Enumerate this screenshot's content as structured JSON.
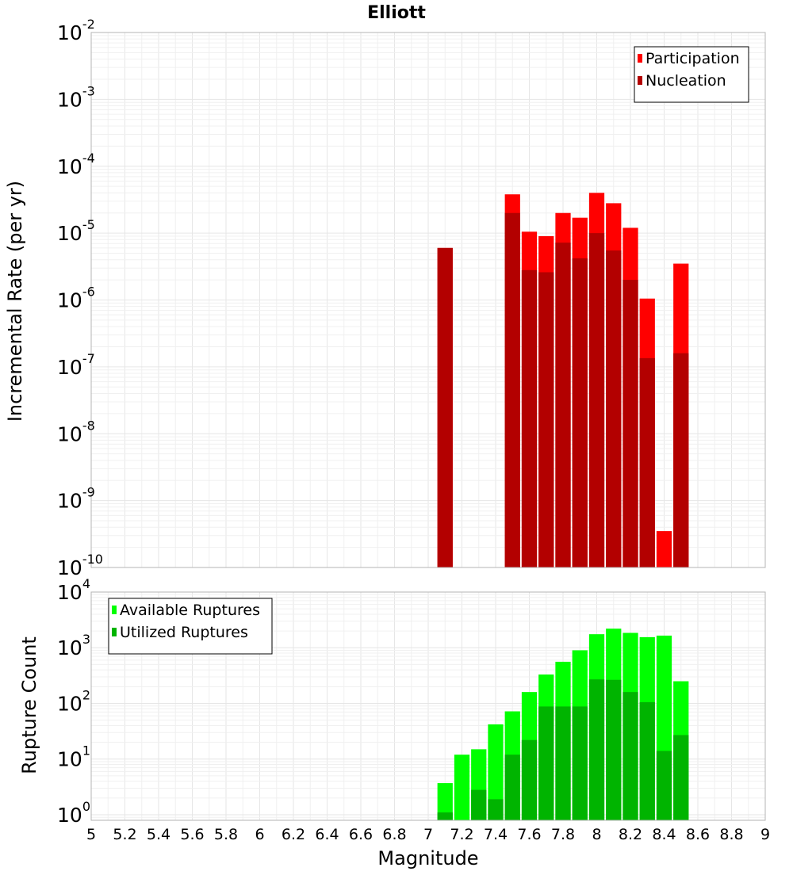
{
  "chart_data": [
    {
      "type": "bar",
      "panel": "top",
      "title": "Elliott",
      "ylabel": "Incremental Rate (per yr)",
      "xlabel": "Magnitude",
      "xlim": [
        5,
        9
      ],
      "ylim_log10": [
        -10,
        -2
      ],
      "yscale": "log",
      "bar_width": 0.1,
      "x": [
        7.1,
        7.2,
        7.3,
        7.4,
        7.5,
        7.6,
        7.7,
        7.8,
        7.9,
        8.0,
        8.1,
        8.2,
        8.3,
        8.4,
        8.5
      ],
      "series": [
        {
          "name": "Participation",
          "color": "#ff0000",
          "values": [
            6e-06,
            null,
            null,
            null,
            3.8e-05,
            1.05e-05,
            9e-06,
            2e-05,
            1.7e-05,
            4e-05,
            2.8e-05,
            1.2e-05,
            1.05e-06,
            3.5e-10,
            3.5e-06
          ]
        },
        {
          "name": "Nucleation",
          "color": "#b30000",
          "values": [
            6e-06,
            null,
            null,
            null,
            2e-05,
            2.8e-06,
            2.6e-06,
            7.2e-06,
            4.2e-06,
            1e-05,
            5.5e-06,
            2e-06,
            1.35e-07,
            null,
            1.6e-07
          ]
        }
      ],
      "legend": [
        "Participation",
        "Nucleation"
      ],
      "legend_position": "top-right",
      "yticks": [
        {
          "base": "10",
          "exp": "-2"
        },
        {
          "base": "10",
          "exp": "-3"
        },
        {
          "base": "10",
          "exp": "-4"
        },
        {
          "base": "10",
          "exp": "-5"
        },
        {
          "base": "10",
          "exp": "-6"
        },
        {
          "base": "10",
          "exp": "-7"
        },
        {
          "base": "10",
          "exp": "-8"
        },
        {
          "base": "10",
          "exp": "-9"
        },
        {
          "base": "10",
          "exp": "-10"
        }
      ]
    },
    {
      "type": "bar",
      "panel": "bottom",
      "ylabel": "Rupture Count",
      "xlabel": "Magnitude",
      "xlim": [
        5,
        9
      ],
      "ylim_log10": [
        -0.1,
        4
      ],
      "yscale": "log",
      "bar_width": 0.1,
      "x": [
        7.1,
        7.2,
        7.3,
        7.4,
        7.5,
        7.6,
        7.7,
        7.8,
        7.9,
        8.0,
        8.1,
        8.2,
        8.3,
        8.4,
        8.5
      ],
      "series": [
        {
          "name": "Available Ruptures",
          "color": "#00ff00",
          "values": [
            3.7,
            12,
            15,
            42,
            72,
            160,
            330,
            560,
            900,
            1750,
            2200,
            1850,
            1550,
            1650,
            250
          ]
        },
        {
          "name": "Utilized Ruptures",
          "color": "#00b400",
          "values": [
            1.1,
            null,
            2.8,
            1.9,
            12,
            22,
            88,
            88,
            88,
            270,
            265,
            160,
            105,
            14,
            27
          ]
        }
      ],
      "legend": [
        "Available Ruptures",
        "Utilized Ruptures"
      ],
      "legend_position": "top-left",
      "yticks": [
        {
          "base": "10",
          "exp": "4"
        },
        {
          "base": "10",
          "exp": "3"
        },
        {
          "base": "10",
          "exp": "2"
        },
        {
          "base": "10",
          "exp": "1"
        },
        {
          "base": "10",
          "exp": "0"
        }
      ],
      "xtick_labels": [
        "5",
        "5.2",
        "5.4",
        "5.6",
        "5.8",
        "6",
        "6.2",
        "6.4",
        "6.6",
        "6.8",
        "7",
        "7.2",
        "7.4",
        "7.6",
        "7.8",
        "8",
        "8.2",
        "8.4",
        "8.6",
        "8.8",
        "9"
      ]
    }
  ]
}
